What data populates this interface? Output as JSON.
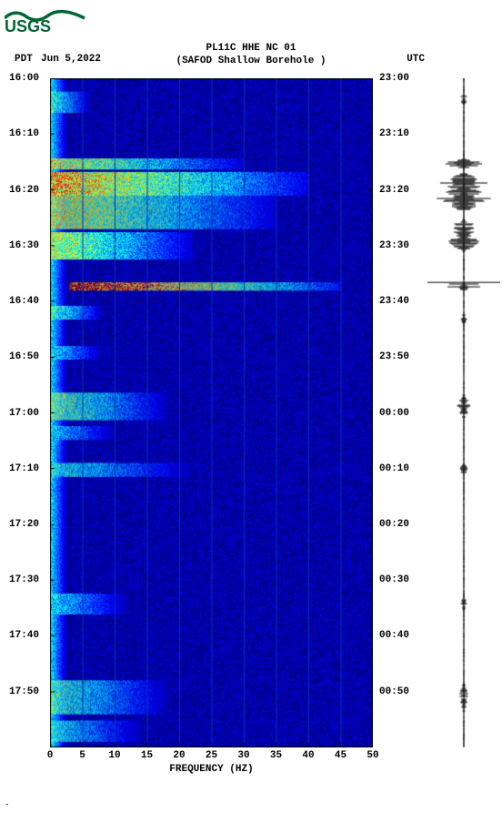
{
  "logo_text": "USGS",
  "logo_color": "#006633",
  "header": {
    "line1": "PL11C HHE NC 01",
    "line2": "(SAFOD Shallow Borehole )",
    "left_tz": "PDT",
    "date": "Jun 5,2022",
    "right_tz": "UTC"
  },
  "spectrogram": {
    "type": "spectrogram",
    "x_axis_label": "FREQUENCY (HZ)",
    "x_ticks": [
      0,
      5,
      10,
      15,
      20,
      25,
      30,
      35,
      40,
      45,
      50
    ],
    "xlim": [
      0,
      50
    ],
    "left_time_ticks": [
      "16:00",
      "16:10",
      "16:20",
      "16:30",
      "16:40",
      "16:50",
      "17:00",
      "17:10",
      "17:20",
      "17:30",
      "17:40",
      "17:50"
    ],
    "right_time_ticks": [
      "23:00",
      "23:10",
      "23:20",
      "23:30",
      "23:40",
      "23:50",
      "00:00",
      "00:10",
      "00:20",
      "00:30",
      "00:40",
      "00:50"
    ],
    "time_fraction_positions": [
      0.0,
      0.083,
      0.167,
      0.25,
      0.333,
      0.417,
      0.5,
      0.583,
      0.667,
      0.75,
      0.833,
      0.917
    ],
    "background_color": "#00008b",
    "grid_color": "#0033bb",
    "text_color": "#000000",
    "font_size_labels": 11,
    "font_size_axis": 11,
    "colormap": [
      "#00007f",
      "#0000ff",
      "#007fff",
      "#00ffff",
      "#7fff7f",
      "#ffff00",
      "#ff7f00",
      "#ff0000",
      "#7f0000"
    ],
    "activity_bands": [
      {
        "t": 0.02,
        "h": 0.03,
        "f0": 0,
        "f1": 6,
        "intensity": 0.45
      },
      {
        "t": 0.12,
        "h": 0.015,
        "f0": 0,
        "f1": 30,
        "intensity": 0.6
      },
      {
        "t": 0.14,
        "h": 0.035,
        "f0": 0,
        "f1": 40,
        "intensity": 0.7
      },
      {
        "t": 0.175,
        "h": 0.05,
        "f0": 0,
        "f1": 35,
        "intensity": 0.6
      },
      {
        "t": 0.23,
        "h": 0.04,
        "f0": 0,
        "f1": 22,
        "intensity": 0.55
      },
      {
        "t": 0.305,
        "h": 0.012,
        "f0": 3,
        "f1": 45,
        "intensity": 0.95
      },
      {
        "t": 0.34,
        "h": 0.02,
        "f0": 0,
        "f1": 8,
        "intensity": 0.45
      },
      {
        "t": 0.4,
        "h": 0.02,
        "f0": 0,
        "f1": 8,
        "intensity": 0.35
      },
      {
        "t": 0.47,
        "h": 0.04,
        "f0": 0,
        "f1": 18,
        "intensity": 0.5
      },
      {
        "t": 0.52,
        "h": 0.02,
        "f0": 0,
        "f1": 10,
        "intensity": 0.35
      },
      {
        "t": 0.575,
        "h": 0.02,
        "f0": 0,
        "f1": 22,
        "intensity": 0.4
      },
      {
        "t": 0.77,
        "h": 0.03,
        "f0": 0,
        "f1": 12,
        "intensity": 0.35
      },
      {
        "t": 0.9,
        "h": 0.05,
        "f0": 0,
        "f1": 18,
        "intensity": 0.45
      },
      {
        "t": 0.96,
        "h": 0.03,
        "f0": 0,
        "f1": 14,
        "intensity": 0.4
      }
    ],
    "low_freq_column": {
      "f0": 0,
      "f1": 3,
      "intensity": 0.35
    }
  },
  "seismogram": {
    "type": "waveform",
    "color": "#000000",
    "baseline_x": 0.5,
    "events": [
      {
        "t": 0.02,
        "amp": 0.12,
        "dur": 0.02
      },
      {
        "t": 0.12,
        "amp": 0.55,
        "dur": 0.015
      },
      {
        "t": 0.14,
        "amp": 0.9,
        "dur": 0.06
      },
      {
        "t": 0.21,
        "amp": 0.6,
        "dur": 0.05
      },
      {
        "t": 0.305,
        "amp": 1.0,
        "dur": 0.012
      },
      {
        "t": 0.35,
        "amp": 0.1,
        "dur": 0.02
      },
      {
        "t": 0.47,
        "amp": 0.2,
        "dur": 0.04
      },
      {
        "t": 0.575,
        "amp": 0.12,
        "dur": 0.02
      },
      {
        "t": 0.77,
        "amp": 0.1,
        "dur": 0.03
      },
      {
        "t": 0.9,
        "amp": 0.15,
        "dur": 0.05
      }
    ]
  },
  "foot_mark": "-"
}
